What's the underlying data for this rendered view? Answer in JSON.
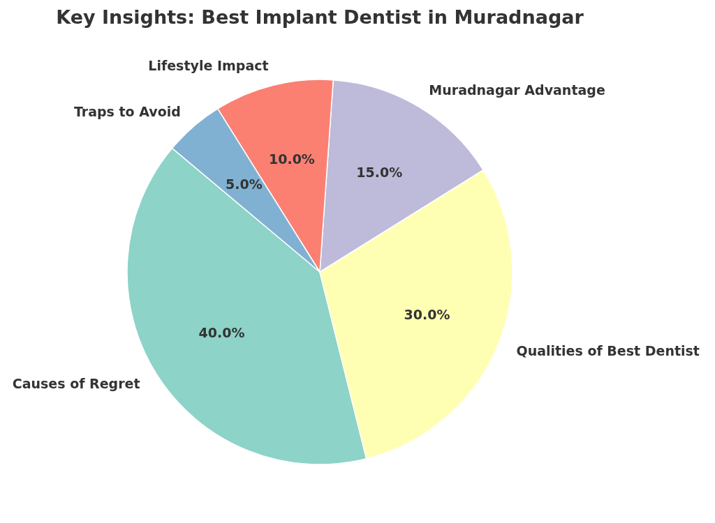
{
  "chart_data": {
    "type": "pie",
    "title": "Key Insights: Best Implant Dentist in Muradnagar",
    "categories": [
      "Causes of Regret",
      "Qualities of Best Dentist",
      "Muradnagar Advantage",
      "Lifestyle Impact",
      "Traps to Avoid"
    ],
    "values": [
      40,
      30,
      15,
      10,
      5
    ],
    "value_labels": [
      "40.0%",
      "30.0%",
      "15.0%",
      "10.0%",
      "5.0%"
    ],
    "colors": [
      "#8dd3c7",
      "#ffffb3",
      "#bebada",
      "#fb8072",
      "#80b1d3"
    ]
  }
}
